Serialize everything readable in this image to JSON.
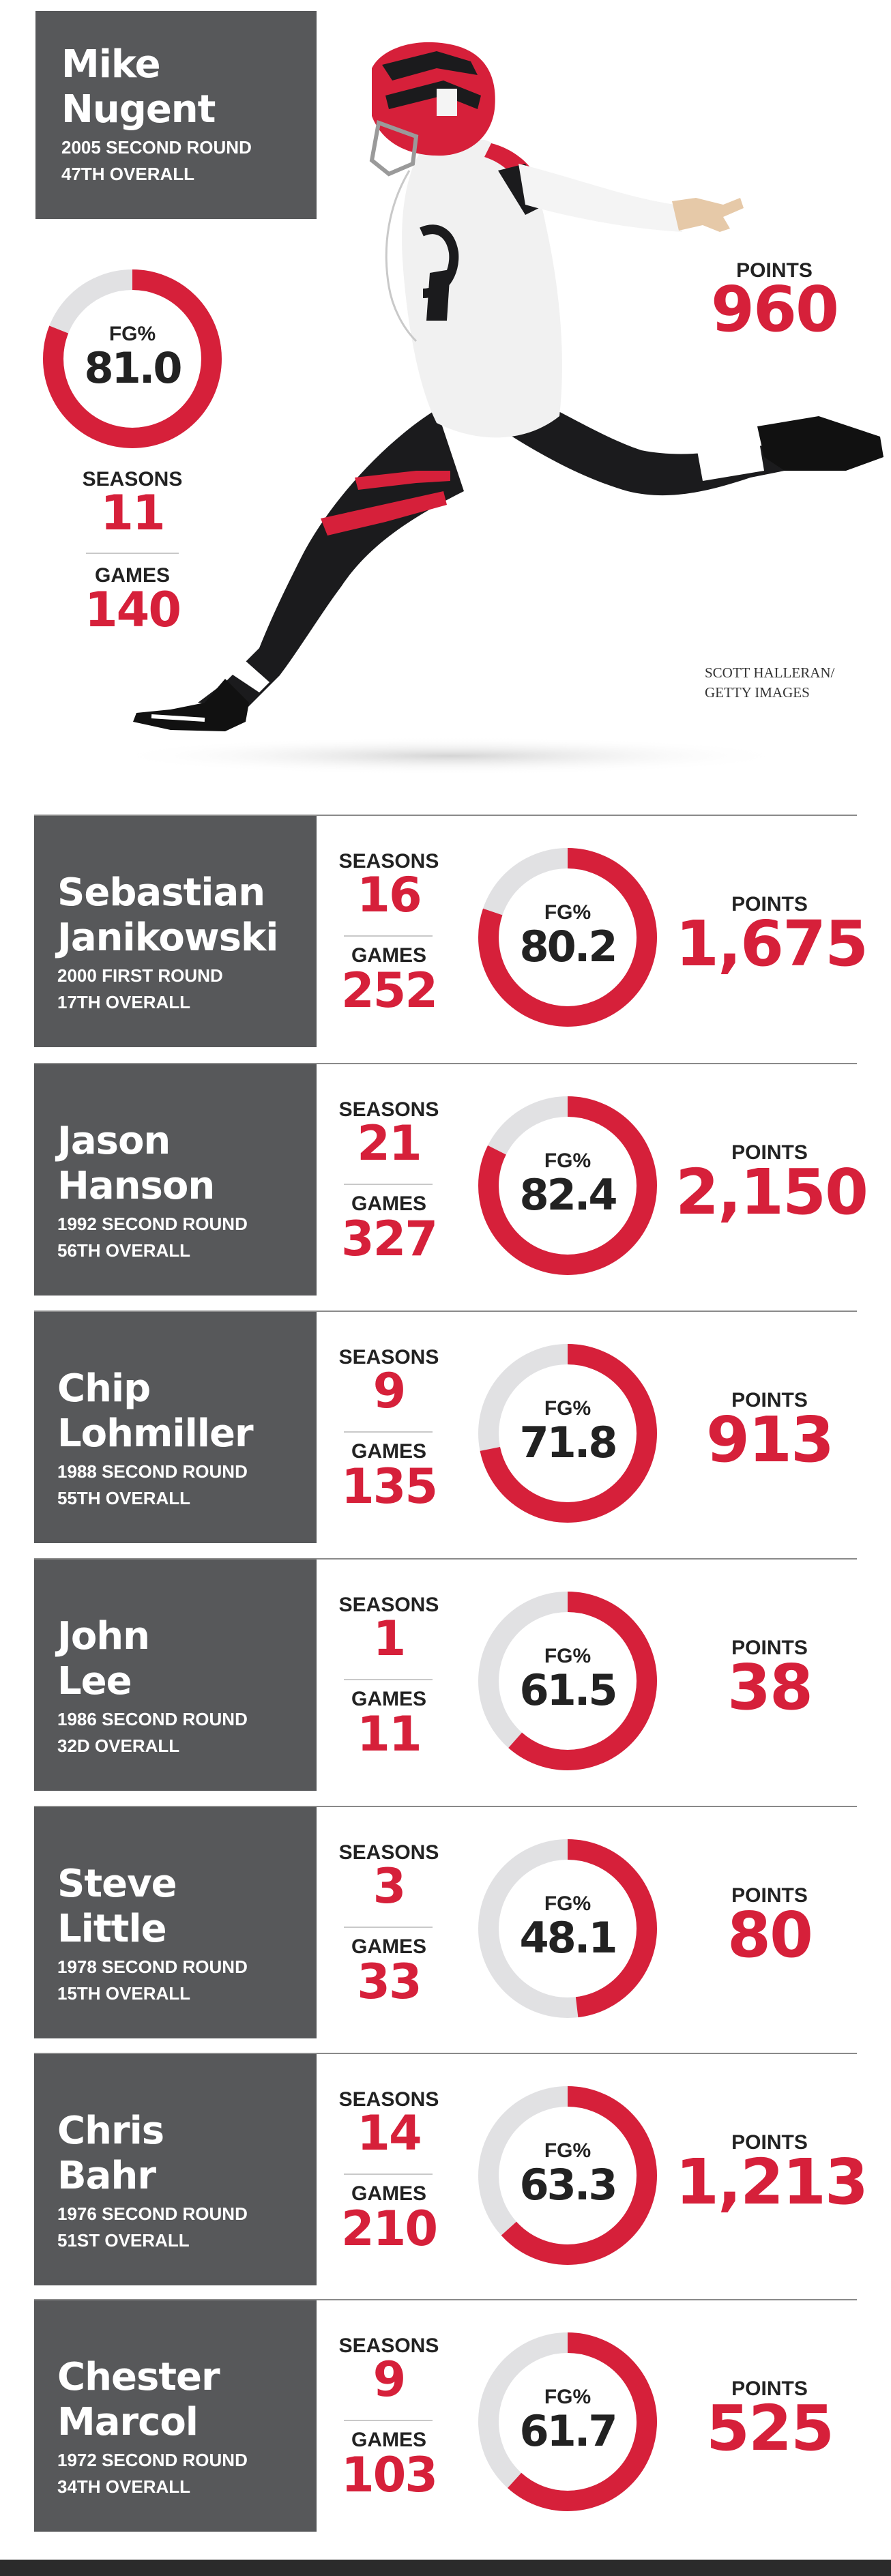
{
  "colors": {
    "accent": "#d6203a",
    "ring_track": "#e1e1e3",
    "panel": "#57585a",
    "text": "#222222"
  },
  "labels": {
    "fg": "FG%",
    "seasons": "SEASONS",
    "games": "GAMES",
    "points": "POINTS"
  },
  "featured": {
    "name_line1": "Mike",
    "name_line2": "Nugent",
    "draft_line1": "2005 SECOND ROUND",
    "draft_line2": "47TH OVERALL",
    "fg_pct": "81.0",
    "seasons": "11",
    "games": "140",
    "points": "960",
    "photo_credit_line1": "SCOTT HALLERAN/",
    "photo_credit_line2": "GETTY IMAGES"
  },
  "kickers": [
    {
      "name_line1": "Sebastian",
      "name_line2": "Janikowski",
      "draft_line1": "2000 FIRST ROUND",
      "draft_line2": "17TH OVERALL",
      "seasons": "16",
      "games": "252",
      "fg_pct": "80.2",
      "points": "1,675"
    },
    {
      "name_line1": "Jason",
      "name_line2": "Hanson",
      "draft_line1": "1992 SECOND ROUND",
      "draft_line2": "56TH OVERALL",
      "seasons": "21",
      "games": "327",
      "fg_pct": "82.4",
      "points": "2,150"
    },
    {
      "name_line1": "Chip",
      "name_line2": "Lohmiller",
      "draft_line1": "1988 SECOND ROUND",
      "draft_line2": "55TH OVERALL",
      "seasons": "9",
      "games": "135",
      "fg_pct": "71.8",
      "points": "913"
    },
    {
      "name_line1": "John",
      "name_line2": "Lee",
      "draft_line1": "1986 SECOND ROUND",
      "draft_line2": "32D OVERALL",
      "seasons": "1",
      "games": "11",
      "fg_pct": "61.5",
      "points": "38"
    },
    {
      "name_line1": "Steve",
      "name_line2": "Little",
      "draft_line1": "1978 SECOND ROUND",
      "draft_line2": "15TH OVERALL",
      "seasons": "3",
      "games": "33",
      "fg_pct": "48.1",
      "points": "80"
    },
    {
      "name_line1": "Chris",
      "name_line2": "Bahr",
      "draft_line1": "1976 SECOND ROUND",
      "draft_line2": "51ST OVERALL",
      "seasons": "14",
      "games": "210",
      "fg_pct": "63.3",
      "points": "1,213"
    },
    {
      "name_line1": "Chester",
      "name_line2": "Marcol",
      "draft_line1": "1972 SECOND ROUND",
      "draft_line2": "34TH OVERALL",
      "seasons": "9",
      "games": "103",
      "fg_pct": "61.7",
      "points": "525"
    }
  ]
}
